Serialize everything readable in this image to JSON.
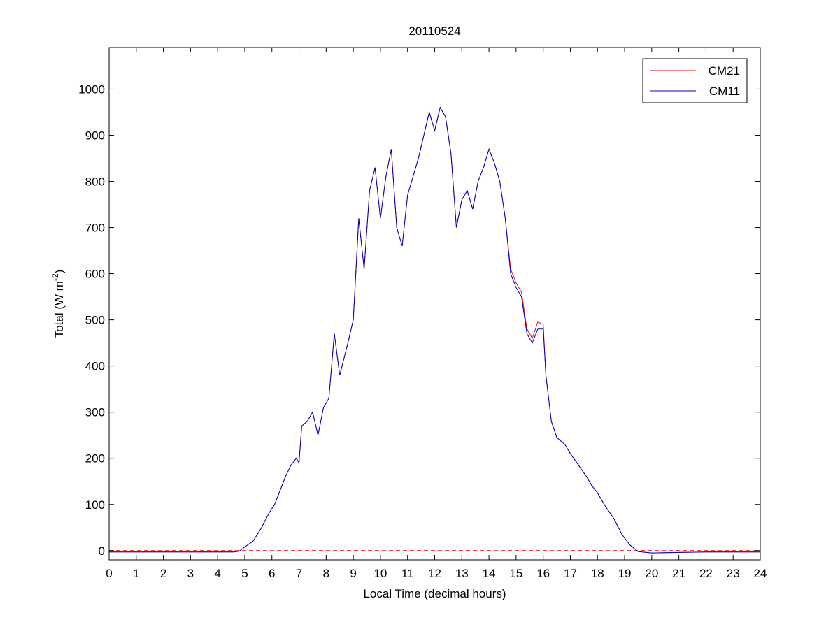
{
  "chart_data": {
    "type": "line",
    "title": "20110524",
    "xlabel": "Local Time (decimal hours)",
    "ylabel": "Total (W m",
    "ylabel_sup": "-2",
    "ylabel_tail": ")",
    "xlim": [
      0,
      24
    ],
    "ylim": [
      -20,
      1090
    ],
    "xticks": [
      0,
      1,
      2,
      3,
      4,
      5,
      6,
      7,
      8,
      9,
      10,
      11,
      12,
      13,
      14,
      15,
      16,
      17,
      18,
      19,
      20,
      21,
      22,
      23,
      24
    ],
    "yticks": [
      0,
      100,
      200,
      300,
      400,
      500,
      600,
      700,
      800,
      900,
      1000
    ],
    "grid": false,
    "legend_position": "top-right",
    "reference_line": {
      "y": 0,
      "style": "dashed",
      "color": "#ff0000"
    },
    "series": [
      {
        "name": "CM21",
        "color": "#ff0000",
        "points": [
          [
            0,
            -3
          ],
          [
            1,
            -3
          ],
          [
            2,
            -3
          ],
          [
            3,
            -3
          ],
          [
            4,
            -3
          ],
          [
            4.6,
            -3
          ],
          [
            4.8,
            -1
          ],
          [
            5,
            8
          ],
          [
            5.3,
            20
          ],
          [
            5.6,
            48
          ],
          [
            5.9,
            82
          ],
          [
            6.1,
            100
          ],
          [
            6.3,
            130
          ],
          [
            6.5,
            160
          ],
          [
            6.7,
            185
          ],
          [
            6.9,
            200
          ],
          [
            7,
            190
          ],
          [
            7.1,
            270
          ],
          [
            7.3,
            280
          ],
          [
            7.5,
            300
          ],
          [
            7.7,
            250
          ],
          [
            7.9,
            310
          ],
          [
            8.1,
            330
          ],
          [
            8.3,
            470
          ],
          [
            8.5,
            380
          ],
          [
            8.8,
            450
          ],
          [
            9,
            500
          ],
          [
            9.2,
            720
          ],
          [
            9.4,
            610
          ],
          [
            9.6,
            780
          ],
          [
            9.8,
            830
          ],
          [
            10,
            720
          ],
          [
            10.2,
            810
          ],
          [
            10.4,
            870
          ],
          [
            10.6,
            700
          ],
          [
            10.8,
            660
          ],
          [
            11,
            770
          ],
          [
            11.2,
            810
          ],
          [
            11.4,
            850
          ],
          [
            11.6,
            900
          ],
          [
            11.8,
            950
          ],
          [
            12,
            910
          ],
          [
            12.2,
            960
          ],
          [
            12.4,
            940
          ],
          [
            12.6,
            860
          ],
          [
            12.8,
            700
          ],
          [
            13,
            760
          ],
          [
            13.2,
            780
          ],
          [
            13.4,
            740
          ],
          [
            13.6,
            800
          ],
          [
            13.8,
            830
          ],
          [
            14,
            870
          ],
          [
            14.2,
            840
          ],
          [
            14.4,
            800
          ],
          [
            14.6,
            720
          ],
          [
            14.8,
            610
          ],
          [
            15,
            580
          ],
          [
            15.2,
            560
          ],
          [
            15.4,
            480
          ],
          [
            15.6,
            460
          ],
          [
            15.8,
            495
          ],
          [
            16,
            490
          ],
          [
            16.1,
            380
          ],
          [
            16.3,
            280
          ],
          [
            16.5,
            245
          ],
          [
            16.8,
            230
          ],
          [
            17,
            210
          ],
          [
            17.3,
            185
          ],
          [
            17.6,
            160
          ],
          [
            17.8,
            140
          ],
          [
            18,
            125
          ],
          [
            18.3,
            95
          ],
          [
            18.6,
            70
          ],
          [
            18.9,
            35
          ],
          [
            19.2,
            12
          ],
          [
            19.5,
            -2
          ],
          [
            19.8,
            -4
          ],
          [
            20,
            -5
          ],
          [
            21,
            -4
          ],
          [
            22,
            -3
          ],
          [
            23,
            -3
          ],
          [
            24,
            -3
          ]
        ]
      },
      {
        "name": "CM11",
        "color": "#0000cc",
        "points": [
          [
            0,
            -3
          ],
          [
            1,
            -3
          ],
          [
            2,
            -3
          ],
          [
            3,
            -3
          ],
          [
            4,
            -3
          ],
          [
            4.6,
            -3
          ],
          [
            4.8,
            -1
          ],
          [
            5,
            8
          ],
          [
            5.3,
            20
          ],
          [
            5.6,
            48
          ],
          [
            5.9,
            82
          ],
          [
            6.1,
            100
          ],
          [
            6.3,
            130
          ],
          [
            6.5,
            160
          ],
          [
            6.7,
            185
          ],
          [
            6.9,
            200
          ],
          [
            7,
            190
          ],
          [
            7.1,
            270
          ],
          [
            7.3,
            280
          ],
          [
            7.5,
            300
          ],
          [
            7.7,
            250
          ],
          [
            7.9,
            310
          ],
          [
            8.1,
            330
          ],
          [
            8.3,
            470
          ],
          [
            8.5,
            380
          ],
          [
            8.8,
            450
          ],
          [
            9,
            500
          ],
          [
            9.2,
            720
          ],
          [
            9.4,
            610
          ],
          [
            9.6,
            780
          ],
          [
            9.8,
            830
          ],
          [
            10,
            720
          ],
          [
            10.2,
            810
          ],
          [
            10.4,
            870
          ],
          [
            10.6,
            700
          ],
          [
            10.8,
            660
          ],
          [
            11,
            770
          ],
          [
            11.2,
            810
          ],
          [
            11.4,
            850
          ],
          [
            11.6,
            900
          ],
          [
            11.8,
            950
          ],
          [
            12,
            910
          ],
          [
            12.2,
            960
          ],
          [
            12.4,
            940
          ],
          [
            12.6,
            860
          ],
          [
            12.8,
            700
          ],
          [
            13,
            760
          ],
          [
            13.2,
            780
          ],
          [
            13.4,
            740
          ],
          [
            13.6,
            800
          ],
          [
            13.8,
            830
          ],
          [
            14,
            870
          ],
          [
            14.2,
            840
          ],
          [
            14.4,
            800
          ],
          [
            14.6,
            720
          ],
          [
            14.8,
            600
          ],
          [
            15,
            570
          ],
          [
            15.2,
            550
          ],
          [
            15.4,
            470
          ],
          [
            15.6,
            450
          ],
          [
            15.8,
            480
          ],
          [
            16,
            480
          ],
          [
            16.1,
            380
          ],
          [
            16.3,
            280
          ],
          [
            16.5,
            245
          ],
          [
            16.8,
            230
          ],
          [
            17,
            210
          ],
          [
            17.3,
            185
          ],
          [
            17.6,
            160
          ],
          [
            17.8,
            140
          ],
          [
            18,
            125
          ],
          [
            18.3,
            95
          ],
          [
            18.6,
            70
          ],
          [
            18.9,
            35
          ],
          [
            19.2,
            12
          ],
          [
            19.5,
            -2
          ],
          [
            19.8,
            -4
          ],
          [
            20,
            -5
          ],
          [
            21,
            -4
          ],
          [
            22,
            -3
          ],
          [
            23,
            -3
          ],
          [
            24,
            -3
          ]
        ]
      }
    ]
  }
}
